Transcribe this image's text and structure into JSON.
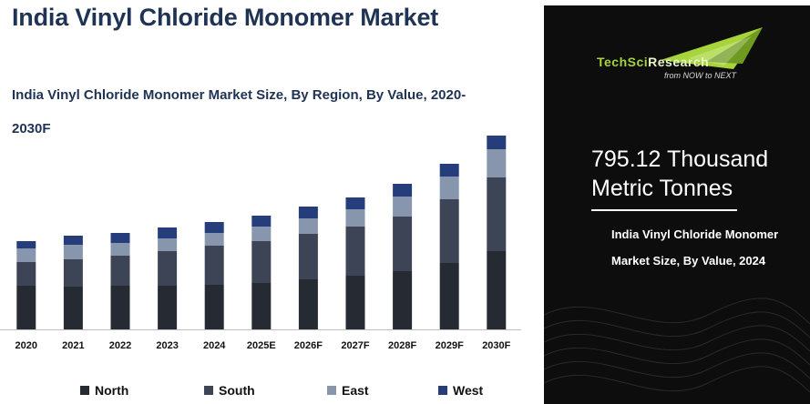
{
  "header": {
    "title": "India Vinyl Chloride Monomer Market",
    "subtitle": "India Vinyl Chloride Monomer Market Size, By Region, By Value, 2020-2030F"
  },
  "chart_data": {
    "type": "bar",
    "stacked": true,
    "categories": [
      "2020",
      "2021",
      "2022",
      "2023",
      "2024",
      "2025E",
      "2026F",
      "2027F",
      "2028F",
      "2029F",
      "2030F"
    ],
    "series": [
      {
        "name": "North",
        "color": "#262b33",
        "values": [
          48,
          47,
          48,
          48,
          49,
          51,
          55,
          59,
          64,
          73,
          86
        ]
      },
      {
        "name": "South",
        "color": "#3c4456",
        "values": [
          26,
          30,
          33,
          38,
          43,
          46,
          50,
          54,
          60,
          70,
          81
        ]
      },
      {
        "name": "East",
        "color": "#8796ad",
        "values": [
          15,
          16,
          14,
          14,
          14,
          16,
          17,
          19,
          22,
          25,
          31
        ]
      },
      {
        "name": "West",
        "color": "#253d7b",
        "values": [
          8,
          10,
          11,
          12,
          12,
          12,
          13,
          13,
          14,
          14,
          15
        ]
      }
    ],
    "xlabel": "",
    "ylabel": "",
    "grid": false,
    "legend_position": "bottom"
  },
  "panel": {
    "logo": {
      "brand_part1": "TechSci",
      "brand_part2": "Research",
      "tagline": "from NOW to NEXT"
    },
    "value": "795.12 Thousand Metric Tonnes",
    "caption": "India Vinyl Chloride Monomer Market Size, By Value, 2024",
    "accent_color": "#a6d43a"
  }
}
